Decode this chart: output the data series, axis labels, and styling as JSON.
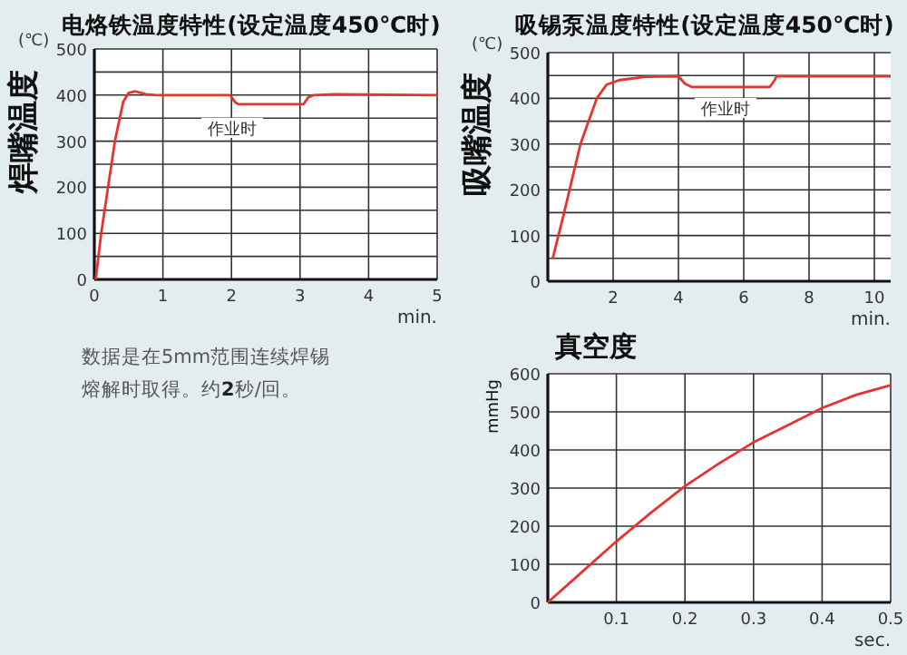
{
  "chart_data": [
    {
      "type": "line",
      "title": "电烙铁温度特性(设定温度450℃时)",
      "xlabel": "min.",
      "ylabel": "焊嘴温度",
      "annotations": [
        "(℃)",
        "作业时"
      ],
      "color": "#e8322e",
      "grid": true,
      "xlim": [
        0,
        5
      ],
      "ylim": [
        0,
        500
      ],
      "xticks": [
        0,
        1,
        2,
        3,
        4,
        5
      ],
      "yticks": [
        0,
        {
          "value": 50,
          "label": null
        },
        100,
        {
          "value": 150,
          "label": null
        },
        200,
        {
          "value": 250,
          "label": null
        },
        300,
        {
          "value": 350,
          "label": null
        },
        400,
        {
          "value": 450,
          "label": null
        },
        500
      ],
      "x": [
        0.02,
        0.1,
        0.2,
        0.3,
        0.42,
        0.5,
        0.6,
        0.75,
        0.9,
        1.98,
        2.05,
        2.1,
        3.05,
        3.12,
        3.2,
        3.5,
        5
      ],
      "values": [
        0,
        100,
        200,
        300,
        385,
        405,
        408,
        402,
        400,
        400,
        385,
        380,
        380,
        395,
        400,
        402,
        400
      ]
    },
    {
      "type": "line",
      "title": "吸锡泵温度特性(设定温度450℃时)",
      "xlabel": "min.",
      "ylabel": "吸嘴温度",
      "annotations": [
        "(℃)",
        "作业时"
      ],
      "color": "#e8322e",
      "grid": true,
      "xlim": [
        0,
        10.5
      ],
      "ylim": [
        0,
        500
      ],
      "xticks": [
        2,
        4,
        6,
        8,
        10
      ],
      "yticks": [
        0,
        {
          "value": 50,
          "label": null
        },
        100,
        {
          "value": 150,
          "label": null
        },
        200,
        {
          "value": 250,
          "label": null
        },
        300,
        {
          "value": 350,
          "label": null
        },
        400,
        {
          "value": 450,
          "label": null
        },
        500
      ],
      "x": [
        0.15,
        0.5,
        1,
        1.5,
        1.8,
        2.2,
        3,
        4,
        4.2,
        4.4,
        6.8,
        6.95,
        7,
        10.5
      ],
      "values": [
        50,
        150,
        300,
        400,
        430,
        440,
        447,
        448,
        432,
        425,
        425,
        440,
        448,
        448
      ]
    },
    {
      "type": "other",
      "annotations": [
        "数据是在5mm范围连续焊锡",
        "熔解时取得。约**2**秒/回。"
      ]
    },
    {
      "type": "line",
      "title": "真空度",
      "xlabel": "sec.",
      "ylabel": "mmHg",
      "color": "#e8322e",
      "grid": true,
      "xlim": [
        0,
        0.5
      ],
      "ylim": [
        0,
        600
      ],
      "xticks": [
        0.1,
        0.2,
        0.3,
        0.4,
        0.5
      ],
      "yticks": [
        0,
        100,
        200,
        300,
        400,
        500,
        600
      ],
      "x": [
        0,
        0.05,
        0.1,
        0.15,
        0.2,
        0.25,
        0.3,
        0.35,
        0.4,
        0.45,
        0.5
      ],
      "values": [
        0,
        80,
        160,
        235,
        305,
        365,
        420,
        465,
        510,
        545,
        570
      ]
    }
  ]
}
